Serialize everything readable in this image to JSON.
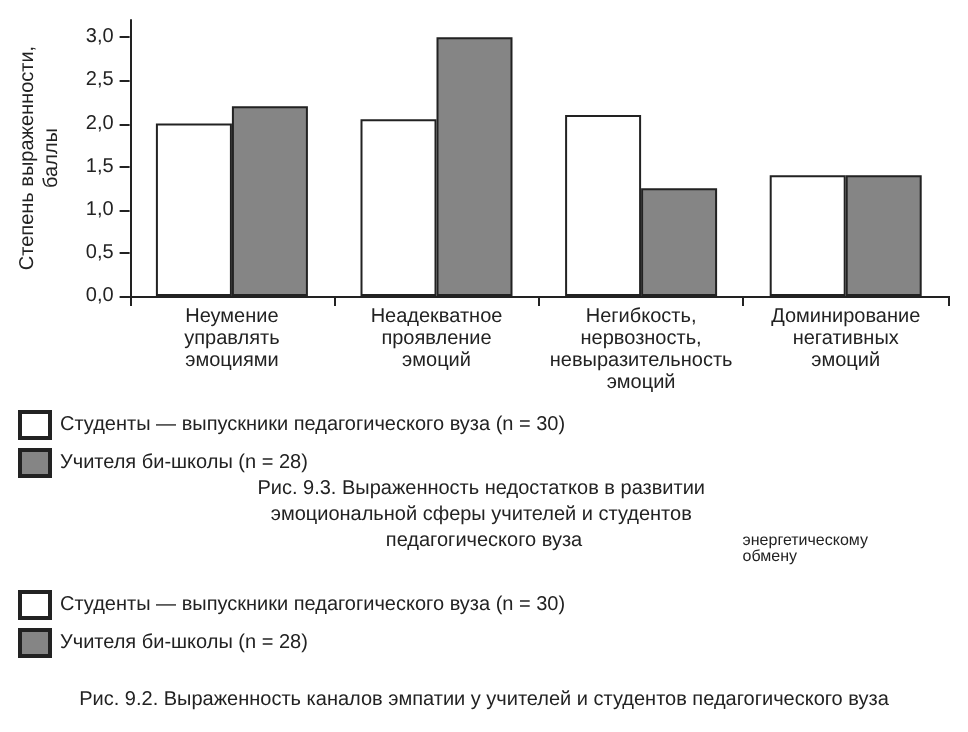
{
  "chart_data": {
    "type": "bar",
    "title": "Рис. 9.3. Выраженность недостатков в развитии эмоциональной сферы учителей и студентов педагогического вуза",
    "ylabel": "Степень выраженности,\nбаллы",
    "categories": [
      "Неумение\nуправлять\nэмоциями",
      "Неадекватное\nпроявление\nэмоций",
      "Негибкость,\nнервозность,\nневыразительность\nэмоций",
      "Доминирование\nнегативных\nэмоций"
    ],
    "series": [
      {
        "name": "Студенты — выпускники педагогического вуза (n = 30)",
        "color": "#ffffff",
        "values": [
          2.0,
          2.05,
          2.1,
          1.4
        ]
      },
      {
        "name": "Учителя би-школы (n = 28)",
        "color": "#858585",
        "values": [
          2.2,
          3.0,
          1.25,
          1.4
        ]
      }
    ],
    "ylim": [
      0,
      3.2
    ],
    "yticks": [
      {
        "value": 0,
        "label": "0,0"
      },
      {
        "value": 0.5,
        "label": "0,5"
      },
      {
        "value": 1,
        "label": "1,0"
      },
      {
        "value": 1.5,
        "label": "1,5"
      },
      {
        "value": 2,
        "label": "2,0"
      },
      {
        "value": 2.5,
        "label": "2,5"
      },
      {
        "value": 3,
        "label": "3,0"
      }
    ],
    "grid": false,
    "legend": "bottom left",
    "annotations": [
      "энергетическому\nобмену",
      "Рис. 9.2. Выраженность каналов эмпатии у учителей и студентов педагогического вуза"
    ]
  }
}
